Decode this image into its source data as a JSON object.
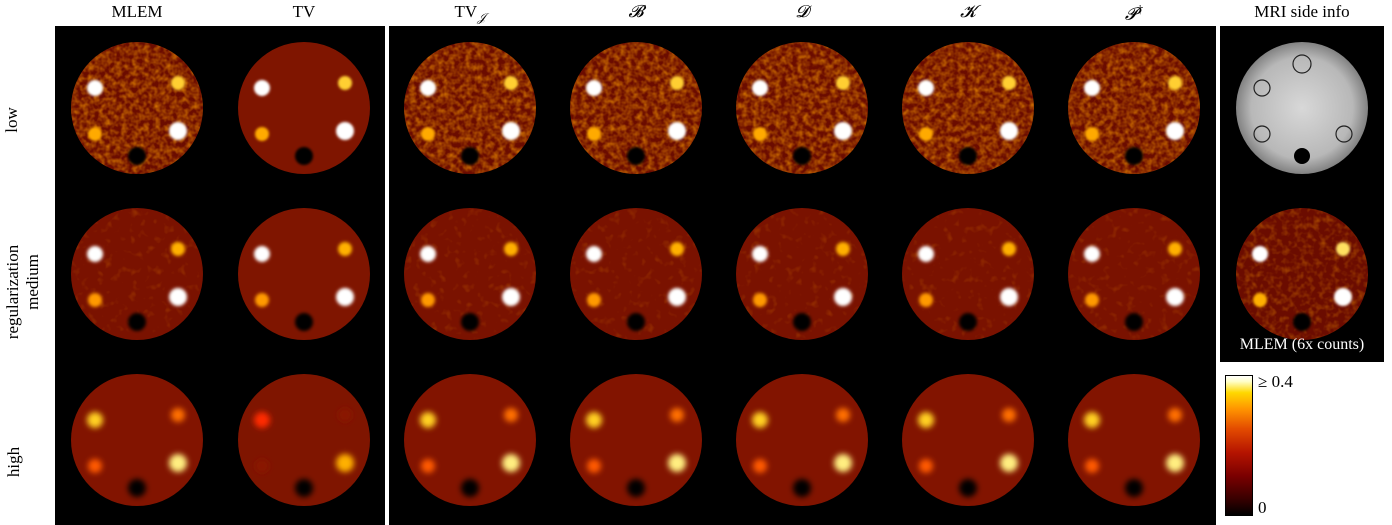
{
  "columns": [
    "MLEM",
    "TV",
    "TV",
    "B",
    "D",
    "K",
    "P"
  ],
  "column_extra": {
    "tv_sub": "𝒥",
    "p_sup": "†"
  },
  "column_math": [
    "MLEM",
    "TV",
    "TV",
    "𝓑",
    "𝓓",
    "𝓚",
    "𝓟"
  ],
  "side_header": "MRI side info",
  "row_group_label": "regularization",
  "rows": [
    "low",
    "medium",
    "high"
  ],
  "side_caption": "MLEM (6x counts)",
  "colorbar": {
    "max_label": "≥ 0.4",
    "min_label": "0",
    "cmap": "hot"
  },
  "colors": {
    "background": "#000000",
    "phantom_low": "#6b0c00",
    "hot_spot": "#ffffff"
  }
}
